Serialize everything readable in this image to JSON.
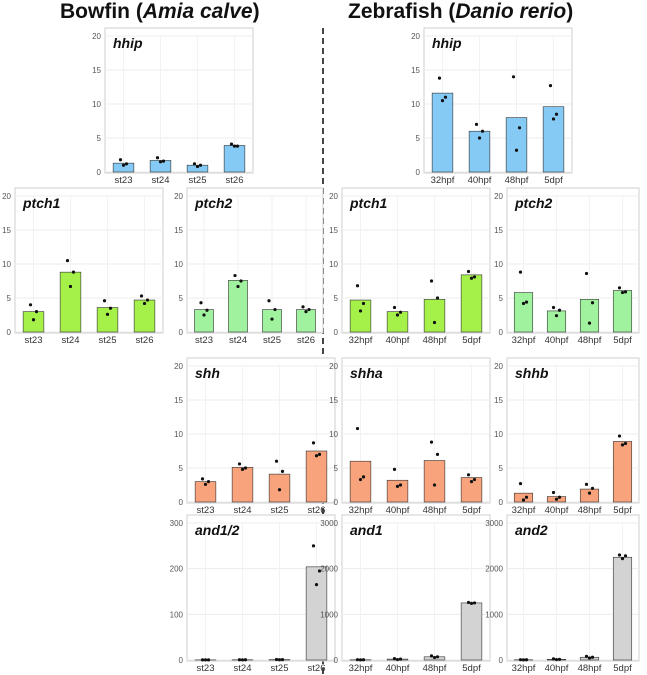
{
  "headers": {
    "left": {
      "prefix": "Bowfin (",
      "species": "Amia calve",
      "suffix": ")"
    },
    "right": {
      "prefix": "Zebrafish (",
      "species": "Danio rerio",
      "suffix": ")"
    }
  },
  "colors": {
    "hh": "#85c9f5",
    "ptch1": "#a6f04a",
    "ptch2": "#a0f29e",
    "shh": "#f8a37c",
    "and": "#d3d3d3"
  },
  "chart_data": [
    {
      "id": "bowfin-hhip",
      "type": "bar",
      "title": "hhip",
      "color_key": "hh",
      "categories": [
        "st23",
        "st24",
        "st25",
        "st26"
      ],
      "values": [
        1.3,
        1.7,
        1.0,
        3.9
      ],
      "points": [
        [
          1.8,
          1.2,
          1.0
        ],
        [
          2.1,
          1.6,
          1.5
        ],
        [
          1.2,
          1.0,
          0.8
        ],
        [
          4.1,
          3.8,
          3.8
        ]
      ],
      "ylim": [
        0,
        20
      ],
      "yticks": [
        0,
        5,
        10,
        15,
        20
      ]
    },
    {
      "id": "zebrafish-hhip",
      "type": "bar",
      "title": "hhip",
      "color_key": "hh",
      "categories": [
        "32hpf",
        "40hpf",
        "48hpf",
        "5dpf"
      ],
      "values": [
        11.6,
        6.0,
        8.0,
        9.6
      ],
      "points": [
        [
          13.8,
          11.0,
          10.5
        ],
        [
          7.0,
          6.0,
          5.0
        ],
        [
          14.0,
          6.5,
          3.2
        ],
        [
          12.7,
          8.5,
          7.8
        ]
      ],
      "ylim": [
        0,
        20
      ],
      "yticks": [
        0,
        5,
        10,
        15,
        20
      ]
    },
    {
      "id": "bowfin-ptch1",
      "type": "bar",
      "title": "ptch1",
      "color_key": "ptch1",
      "categories": [
        "st23",
        "st24",
        "st25",
        "st26"
      ],
      "values": [
        3.0,
        8.8,
        3.6,
        4.7
      ],
      "points": [
        [
          4.0,
          3.0,
          1.8
        ],
        [
          10.5,
          8.8,
          6.7
        ],
        [
          4.6,
          3.5,
          2.6
        ],
        [
          5.3,
          4.7,
          4.2
        ]
      ],
      "ylim": [
        0,
        20
      ],
      "yticks": [
        0,
        5,
        10,
        15,
        20
      ]
    },
    {
      "id": "bowfin-ptch2",
      "type": "bar",
      "title": "ptch2",
      "color_key": "ptch2",
      "categories": [
        "st23",
        "st24",
        "st25",
        "st26"
      ],
      "values": [
        3.3,
        7.6,
        3.3,
        3.3
      ],
      "points": [
        [
          4.3,
          3.2,
          2.5
        ],
        [
          8.3,
          7.5,
          6.7
        ],
        [
          4.6,
          3.3,
          1.9
        ],
        [
          3.7,
          3.3,
          3.0
        ]
      ],
      "ylim": [
        0,
        20
      ],
      "yticks": [
        0,
        5,
        10,
        15,
        20
      ]
    },
    {
      "id": "zebrafish-ptch1",
      "type": "bar",
      "title": "ptch1",
      "color_key": "ptch1",
      "categories": [
        "32hpf",
        "40hpf",
        "48hpf",
        "5dpf"
      ],
      "values": [
        4.7,
        3.0,
        4.8,
        8.4
      ],
      "points": [
        [
          6.8,
          4.2,
          3.1
        ],
        [
          3.6,
          2.9,
          2.5
        ],
        [
          7.5,
          5.0,
          1.4
        ],
        [
          8.9,
          8.1,
          7.9
        ]
      ],
      "ylim": [
        0,
        20
      ],
      "yticks": [
        0,
        5,
        10,
        15,
        20
      ]
    },
    {
      "id": "zebrafish-ptch2",
      "type": "bar",
      "title": "ptch2",
      "color_key": "ptch2",
      "categories": [
        "32hpf",
        "40hpf",
        "48hpf",
        "5dpf"
      ],
      "values": [
        5.8,
        3.1,
        4.8,
        6.1
      ],
      "points": [
        [
          8.8,
          4.4,
          4.2
        ],
        [
          3.6,
          3.2,
          2.4
        ],
        [
          8.6,
          4.3,
          1.3
        ],
        [
          6.5,
          5.9,
          5.8
        ]
      ],
      "ylim": [
        0,
        20
      ],
      "yticks": [
        0,
        5,
        10,
        15,
        20
      ]
    },
    {
      "id": "bowfin-shh",
      "type": "bar",
      "title": "shh",
      "color_key": "shh",
      "categories": [
        "st23",
        "st24",
        "st25",
        "st26"
      ],
      "values": [
        3.0,
        5.1,
        4.1,
        7.5
      ],
      "points": [
        [
          3.4,
          3.0,
          2.6
        ],
        [
          5.6,
          5.0,
          4.8
        ],
        [
          6.0,
          4.5,
          1.8
        ],
        [
          8.7,
          7.0,
          6.8
        ]
      ],
      "ylim": [
        0,
        20
      ],
      "yticks": [
        0,
        5,
        10,
        15,
        20
      ]
    },
    {
      "id": "zebrafish-shha",
      "type": "bar",
      "title": "shha",
      "color_key": "shh",
      "categories": [
        "32hpf",
        "40hpf",
        "48hpf",
        "5dpf"
      ],
      "values": [
        6.0,
        3.2,
        6.1,
        3.6
      ],
      "points": [
        [
          10.8,
          3.7,
          3.3
        ],
        [
          4.8,
          2.5,
          2.3
        ],
        [
          8.8,
          7.0,
          2.5
        ],
        [
          4.0,
          3.3,
          3.0
        ]
      ],
      "ylim": [
        0,
        20
      ],
      "yticks": [
        0,
        5,
        10,
        15,
        20
      ]
    },
    {
      "id": "zebrafish-shhb",
      "type": "bar",
      "title": "shhb",
      "color_key": "shh",
      "categories": [
        "32hpf",
        "40hpf",
        "48hpf",
        "5dpf"
      ],
      "values": [
        1.3,
        0.8,
        1.9,
        8.9
      ],
      "points": [
        [
          2.7,
          0.7,
          0.3
        ],
        [
          1.4,
          0.7,
          0.4
        ],
        [
          2.6,
          2.0,
          1.3
        ],
        [
          9.7,
          8.6,
          8.4
        ]
      ],
      "ylim": [
        0,
        20
      ],
      "yticks": [
        0,
        5,
        10,
        15,
        20
      ]
    },
    {
      "id": "bowfin-and12",
      "type": "bar",
      "title": "and1/2",
      "color_key": "and",
      "categories": [
        "st23",
        "st24",
        "st25",
        "st26"
      ],
      "values": [
        0.3,
        0.5,
        0.8,
        204
      ],
      "points": [
        [
          0.4,
          0.3,
          0.2
        ],
        [
          0.6,
          0.5,
          0.4
        ],
        [
          1.2,
          0.8,
          0.5
        ],
        [
          250,
          195,
          165
        ]
      ],
      "ylim": [
        0,
        300
      ],
      "yticks": [
        0,
        100,
        200,
        300
      ]
    },
    {
      "id": "zebrafish-and1",
      "type": "bar",
      "title": "and1",
      "color_key": "and",
      "categories": [
        "32hpf",
        "40hpf",
        "48hpf",
        "5dpf"
      ],
      "values": [
        5,
        20,
        70,
        1250
      ],
      "points": [
        [
          7,
          5,
          3
        ],
        [
          30,
          20,
          10
        ],
        [
          90,
          70,
          55
        ],
        [
          1260,
          1250,
          1240
        ]
      ],
      "ylim": [
        0,
        3000
      ],
      "yticks": [
        0,
        1000,
        2000,
        3000
      ]
    },
    {
      "id": "zebrafish-and2",
      "type": "bar",
      "title": "and2",
      "color_key": "and",
      "categories": [
        "32hpf",
        "40hpf",
        "48hpf",
        "5dpf"
      ],
      "values": [
        5,
        15,
        60,
        2250
      ],
      "points": [
        [
          7,
          5,
          3
        ],
        [
          25,
          15,
          10
        ],
        [
          80,
          60,
          45
        ],
        [
          2300,
          2280,
          2220
        ]
      ],
      "ylim": [
        0,
        3000
      ],
      "yticks": [
        0,
        1000,
        2000,
        3000
      ]
    }
  ]
}
